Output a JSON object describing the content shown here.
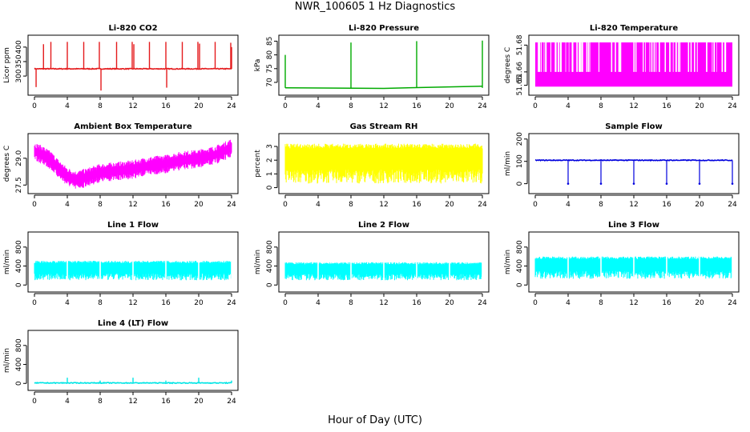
{
  "title": "NWR_100605  1 Hz Diagnostics",
  "xlabel": "Hour of Day (UTC)",
  "chart_data": [
    {
      "type": "line",
      "title": "Li-820 CO2",
      "ylabel": "Licor ppm",
      "color": "#e41a1c",
      "xlim": [
        0,
        24
      ],
      "ylim": [
        245,
        430
      ],
      "yticks": [
        "300",
        "350",
        "400"
      ],
      "ytick_values": [
        300,
        350,
        400
      ],
      "xticks": [
        "0",
        "4",
        "8",
        "12",
        "16",
        "20",
        "24"
      ],
      "baseline": 325,
      "spikes": [
        [
          0.2,
          262
        ],
        [
          1.1,
          410
        ],
        [
          2.0,
          418
        ],
        [
          4.0,
          418
        ],
        [
          6.0,
          418
        ],
        [
          7.9,
          418
        ],
        [
          8.1,
          250
        ],
        [
          10.0,
          418
        ],
        [
          11.9,
          418
        ],
        [
          12.1,
          410
        ],
        [
          14.0,
          418
        ],
        [
          16.0,
          418
        ],
        [
          16.1,
          260
        ],
        [
          18.0,
          418
        ],
        [
          19.9,
          418
        ],
        [
          20.1,
          412
        ],
        [
          22.0,
          418
        ],
        [
          23.9,
          415
        ],
        [
          24.0,
          400
        ]
      ]
    },
    {
      "type": "line",
      "title": "Li-820 Pressure",
      "ylabel": "kPa",
      "color": "#00aa00",
      "xlim": [
        0,
        24
      ],
      "ylim": [
        66.5,
        86
      ],
      "yticks": [
        "70",
        "75",
        "80",
        "85"
      ],
      "ytick_values": [
        70,
        75,
        80,
        85
      ],
      "xticks": [
        "0",
        "4",
        "8",
        "12",
        "16",
        "20",
        "24"
      ],
      "baseline": [
        [
          0,
          68.0
        ],
        [
          8,
          67.9
        ],
        [
          12,
          67.8
        ],
        [
          16,
          68.1
        ],
        [
          24,
          68.6
        ]
      ],
      "spikes": [
        [
          0.0,
          80.0
        ],
        [
          8.0,
          84.5
        ],
        [
          16.0,
          85.0
        ],
        [
          24.0,
          85.2
        ]
      ]
    },
    {
      "type": "area",
      "title": "Li-820 Temperature",
      "ylabel": "degrees C",
      "color": "#ff00ff",
      "xlim": [
        0,
        24
      ],
      "ylim": [
        51.645,
        51.685
      ],
      "yticks": [
        "51.65",
        "51.66",
        "51.68"
      ],
      "ytick_values": [
        51.65,
        51.66,
        51.68
      ],
      "xticks": [
        "0",
        "4",
        "8",
        "12",
        "16",
        "20",
        "24"
      ],
      "band": [
        51.649,
        51.682
      ]
    },
    {
      "type": "area",
      "title": "Ambient Box Temperature",
      "ylabel": "degrees C",
      "color": "#ff00ff",
      "xlim": [
        0,
        24
      ],
      "ylim": [
        27.2,
        30.2
      ],
      "yticks": [
        "27.5",
        "29.0"
      ],
      "ytick_values": [
        27.5,
        29.0
      ],
      "xticks": [
        "0",
        "4",
        "8",
        "12",
        "16",
        "20",
        "24"
      ],
      "profile": [
        [
          0,
          29.4
        ],
        [
          1,
          29.2
        ],
        [
          2,
          28.9
        ],
        [
          3,
          28.4
        ],
        [
          4,
          28.0
        ],
        [
          5,
          27.8
        ],
        [
          6,
          27.9
        ],
        [
          8,
          28.2
        ],
        [
          10,
          28.3
        ],
        [
          12,
          28.4
        ],
        [
          14,
          28.6
        ],
        [
          16,
          28.7
        ],
        [
          18,
          28.9
        ],
        [
          20,
          29.0
        ],
        [
          22,
          29.2
        ],
        [
          24,
          29.6
        ]
      ],
      "amplitude": 0.55
    },
    {
      "type": "area",
      "title": "Gas Stream RH",
      "ylabel": "percent",
      "color": "#ffff00",
      "xlim": [
        0,
        24
      ],
      "ylim": [
        -0.2,
        3.7
      ],
      "yticks": [
        "0",
        "1",
        "2",
        "3"
      ],
      "ytick_values": [
        0,
        1,
        2,
        3
      ],
      "xticks": [
        "0",
        "4",
        "8",
        "12",
        "16",
        "20",
        "24"
      ],
      "band": [
        0.3,
        3.2
      ]
    },
    {
      "type": "line",
      "title": "Sample Flow",
      "ylabel": "ml/min",
      "color": "#0000dd",
      "xlim": [
        0,
        24
      ],
      "ylim": [
        -30,
        210
      ],
      "yticks": [
        "0",
        "100",
        "200"
      ],
      "ytick_values": [
        0,
        100,
        200
      ],
      "xticks": [
        "0",
        "4",
        "8",
        "12",
        "16",
        "20",
        "24"
      ],
      "baseline": 105,
      "dips": [
        4.0,
        8.0,
        12.0,
        16.0,
        20.0,
        24.0
      ]
    },
    {
      "type": "area",
      "title": "Line 1 Flow",
      "ylabel": "ml/min",
      "color": "#00ffff",
      "xlim": [
        0,
        24
      ],
      "ylim": [
        -80,
        1050
      ],
      "yticks": [
        "0",
        "400",
        "800"
      ],
      "ytick_values": [
        0,
        400,
        800
      ],
      "xticks": [
        "0",
        "4",
        "8",
        "12",
        "16",
        "20",
        "24"
      ],
      "band": [
        100,
        510
      ],
      "gaps": [
        4,
        8,
        12,
        16,
        20,
        24
      ]
    },
    {
      "type": "area",
      "title": "Line 2 Flow",
      "ylabel": "ml/min",
      "color": "#00ffff",
      "xlim": [
        0,
        24
      ],
      "ylim": [
        -80,
        1050
      ],
      "yticks": [
        "0",
        "400",
        "800"
      ],
      "ytick_values": [
        0,
        400,
        800
      ],
      "xticks": [
        "0",
        "4",
        "8",
        "12",
        "16",
        "20",
        "24"
      ],
      "band": [
        100,
        480
      ],
      "gaps": [
        4,
        8,
        12,
        16,
        20,
        24
      ]
    },
    {
      "type": "area",
      "title": "Line 3 Flow",
      "ylabel": "ml/min",
      "color": "#00ffff",
      "xlim": [
        0,
        24
      ],
      "ylim": [
        -80,
        1050
      ],
      "yticks": [
        "0",
        "400",
        "800"
      ],
      "ytick_values": [
        0,
        400,
        800
      ],
      "xticks": [
        "0",
        "4",
        "8",
        "12",
        "16",
        "20",
        "24"
      ],
      "band": [
        130,
        600
      ],
      "gaps": [
        4,
        8,
        12,
        16,
        20,
        24
      ]
    },
    {
      "type": "line",
      "title": "Line 4 (LT) Flow",
      "ylabel": "ml/min",
      "color": "#00e5e5",
      "xlim": [
        0,
        24
      ],
      "ylim": [
        -80,
        1050
      ],
      "yticks": [
        "0",
        "400",
        "800"
      ],
      "ytick_values": [
        0,
        400,
        800
      ],
      "xticks": [
        "0",
        "4",
        "8",
        "12",
        "16",
        "20",
        "24"
      ],
      "baseline": 10,
      "spikes": [
        [
          4.0,
          120
        ],
        [
          8.0,
          60
        ],
        [
          12.0,
          120
        ],
        [
          16.0,
          60
        ],
        [
          20.0,
          120
        ],
        [
          24.0,
          60
        ]
      ]
    }
  ]
}
